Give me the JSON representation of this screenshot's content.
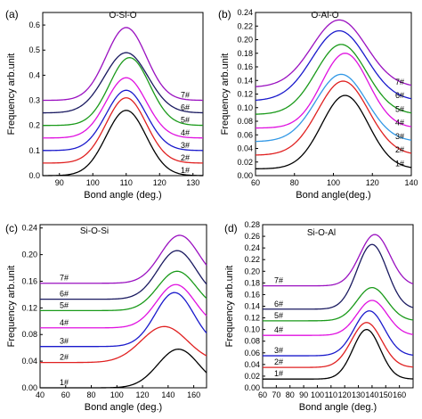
{
  "chart_data": [
    {
      "type": "line",
      "panel_label": "(a)",
      "title": "O-Si-O",
      "xlabel": "Bond angle (deg.)",
      "ylabel": "Frequency arb.unit",
      "xlim": [
        85,
        133
      ],
      "ylim": [
        0,
        0.65
      ],
      "xticks": [
        "90",
        "100",
        "110",
        "120",
        "130"
      ],
      "yticks": [
        "0.0",
        "0.1",
        "0.2",
        "0.3",
        "0.4",
        "0.5",
        "0.6"
      ],
      "series": [
        {
          "name": "1#",
          "color": "#000000",
          "baseline": 0.0,
          "peak_x": 110,
          "peak_y": 0.26,
          "width": 6
        },
        {
          "name": "2#",
          "color": "#e02020",
          "baseline": 0.05,
          "peak_x": 110,
          "peak_y": 0.31,
          "width": 6
        },
        {
          "name": "3#",
          "color": "#1a1acc",
          "baseline": 0.1,
          "peak_x": 110,
          "peak_y": 0.34,
          "width": 6
        },
        {
          "name": "4#",
          "color": "#e010e0",
          "baseline": 0.15,
          "peak_x": 110,
          "peak_y": 0.39,
          "width": 6
        },
        {
          "name": "5#",
          "color": "#1a9a1a",
          "baseline": 0.2,
          "peak_x": 111,
          "peak_y": 0.47,
          "width": 6
        },
        {
          "name": "6#",
          "color": "#1a1a60",
          "baseline": 0.25,
          "peak_x": 110,
          "peak_y": 0.49,
          "width": 6.5
        },
        {
          "name": "7#",
          "color": "#9a10c0",
          "baseline": 0.3,
          "peak_x": 110,
          "peak_y": 0.59,
          "width": 6
        }
      ]
    },
    {
      "type": "line",
      "panel_label": "(b)",
      "title": "O-Al-O",
      "xlabel": "Bond angle(deg.)",
      "ylabel": "Frequency arb.unit",
      "xlim": [
        60,
        140
      ],
      "ylim": [
        0,
        0.24
      ],
      "xticks": [
        "60",
        "80",
        "100",
        "120",
        "140"
      ],
      "yticks": [
        "0.00",
        "0.02",
        "0.04",
        "0.06",
        "0.08",
        "0.10",
        "0.12",
        "0.14",
        "0.16",
        "0.18",
        "0.20",
        "0.22",
        "0.24"
      ],
      "series": [
        {
          "name": "1#",
          "color": "#000000",
          "baseline": 0.01,
          "peak_x": 106,
          "peak_y": 0.118,
          "width": 12
        },
        {
          "name": "2#",
          "color": "#e02020",
          "baseline": 0.03,
          "peak_x": 105,
          "peak_y": 0.139,
          "width": 13
        },
        {
          "name": "3#",
          "color": "#3399e6",
          "baseline": 0.05,
          "peak_x": 104,
          "peak_y": 0.149,
          "width": 13
        },
        {
          "name": "4#",
          "color": "#e010e0",
          "baseline": 0.07,
          "peak_x": 106,
          "peak_y": 0.18,
          "width": 12
        },
        {
          "name": "5#",
          "color": "#1a9a1a",
          "baseline": 0.09,
          "peak_x": 104,
          "peak_y": 0.193,
          "width": 13
        },
        {
          "name": "6#",
          "color": "#1a1acc",
          "baseline": 0.11,
          "peak_x": 103,
          "peak_y": 0.213,
          "width": 14
        },
        {
          "name": "7#",
          "color": "#9a10c0",
          "baseline": 0.13,
          "peak_x": 103,
          "peak_y": 0.229,
          "width": 14
        }
      ]
    },
    {
      "type": "line",
      "panel_label": "(c)",
      "title": "Si-O-Si",
      "xlabel": "Bond angle (deg.)",
      "ylabel": "Frequency arb.unit",
      "xlim": [
        40,
        170
      ],
      "ylim": [
        0,
        0.245
      ],
      "xticks": [
        "40",
        "60",
        "80",
        "100",
        "120",
        "140",
        "160"
      ],
      "yticks": [
        "0.00",
        "0.04",
        "0.08",
        "0.12",
        "0.16",
        "0.20",
        "0.24"
      ],
      "series": [
        {
          "name": "1#",
          "color": "#000000",
          "baseline": 0.0,
          "peak_x": 148,
          "peak_y": 0.058,
          "width": 16
        },
        {
          "name": "2#",
          "color": "#e02020",
          "baseline": 0.038,
          "peak_x": 137,
          "peak_y": 0.092,
          "width": 18
        },
        {
          "name": "3#",
          "color": "#1a1acc",
          "baseline": 0.062,
          "peak_x": 145,
          "peak_y": 0.143,
          "width": 15
        },
        {
          "name": "4#",
          "color": "#e010e0",
          "baseline": 0.09,
          "peak_x": 146,
          "peak_y": 0.155,
          "width": 15
        },
        {
          "name": "5#",
          "color": "#1a9a1a",
          "baseline": 0.116,
          "peak_x": 147,
          "peak_y": 0.175,
          "width": 15
        },
        {
          "name": "6#",
          "color": "#1a1a60",
          "baseline": 0.133,
          "peak_x": 147,
          "peak_y": 0.206,
          "width": 15
        },
        {
          "name": "7#",
          "color": "#9a10c0",
          "baseline": 0.157,
          "peak_x": 149,
          "peak_y": 0.229,
          "width": 15
        }
      ]
    },
    {
      "type": "line",
      "panel_label": "(d)",
      "title": "Si-O-Al",
      "xlabel": "Bond angle (deg.)",
      "ylabel": "Frequency arb.unit",
      "xlim": [
        60,
        170
      ],
      "ylim": [
        0,
        0.28
      ],
      "xticks": [
        "60",
        "70",
        "80",
        "90",
        "100",
        "110",
        "120",
        "130",
        "140",
        "150",
        "160"
      ],
      "yticks": [
        "0.00",
        "0.02",
        "0.04",
        "0.06",
        "0.08",
        "0.10",
        "0.12",
        "0.14",
        "0.16",
        "0.18",
        "0.20",
        "0.22",
        "0.24",
        "0.26",
        "0.28"
      ],
      "series": [
        {
          "name": "1#",
          "color": "#000000",
          "baseline": 0.015,
          "peak_x": 136,
          "peak_y": 0.1,
          "width": 10
        },
        {
          "name": "2#",
          "color": "#e02020",
          "baseline": 0.035,
          "peak_x": 136,
          "peak_y": 0.112,
          "width": 11
        },
        {
          "name": "3#",
          "color": "#1a1acc",
          "baseline": 0.055,
          "peak_x": 138,
          "peak_y": 0.132,
          "width": 11
        },
        {
          "name": "4#",
          "color": "#e010e0",
          "baseline": 0.09,
          "peak_x": 140,
          "peak_y": 0.15,
          "width": 11
        },
        {
          "name": "5#",
          "color": "#1a9a1a",
          "baseline": 0.115,
          "peak_x": 140,
          "peak_y": 0.172,
          "width": 11
        },
        {
          "name": "6#",
          "color": "#1a1a60",
          "baseline": 0.135,
          "peak_x": 140,
          "peak_y": 0.246,
          "width": 11
        },
        {
          "name": "7#",
          "color": "#9a10c0",
          "baseline": 0.175,
          "peak_x": 142,
          "peak_y": 0.263,
          "width": 11
        }
      ]
    }
  ]
}
